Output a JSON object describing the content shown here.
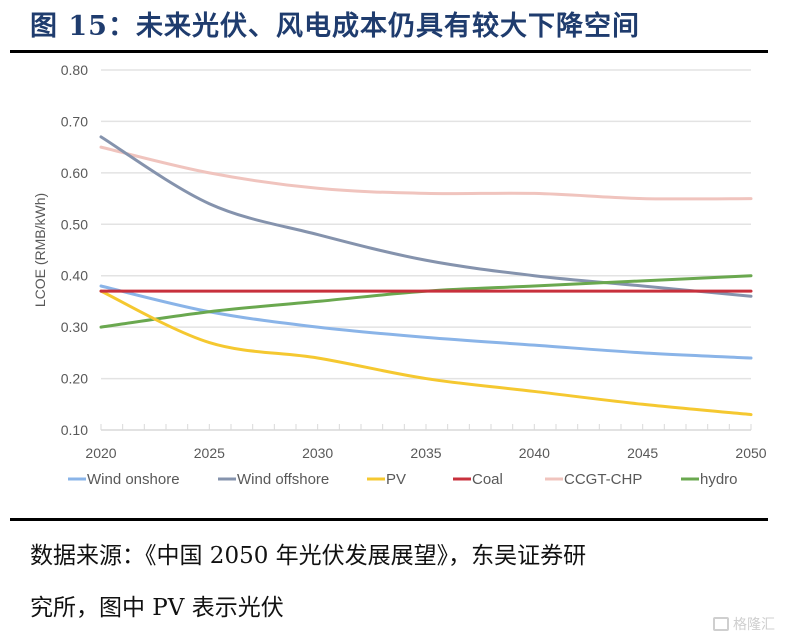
{
  "title": "图 15：未来光伏、风电成本仍具有较大下降空间",
  "source_line1": "数据来源：《中国 2050 年光伏发展展望》，东吴证券研",
  "source_line2": "究所，图中 PV 表示光伏",
  "watermark": "格隆汇",
  "chart_data": {
    "type": "line",
    "title": "",
    "xlabel": "",
    "ylabel": "LCOE (RMB/kWh)",
    "x": [
      2020,
      2025,
      2030,
      2035,
      2040,
      2045,
      2050
    ],
    "xlim": [
      2020,
      2050
    ],
    "ylim": [
      0.1,
      0.8
    ],
    "yticks": [
      "0.10",
      "0.20",
      "0.30",
      "0.40",
      "0.50",
      "0.60",
      "0.70",
      "0.80"
    ],
    "xticks": [
      "2020",
      "2025",
      "2030",
      "2035",
      "2040",
      "2045",
      "2050"
    ],
    "grid": true,
    "legend_position": "bottom",
    "series": [
      {
        "name": "Wind onshore",
        "color": "#8ab4e8",
        "values": [
          0.38,
          0.33,
          0.3,
          0.28,
          0.265,
          0.25,
          0.24
        ]
      },
      {
        "name": "Wind offshore",
        "color": "#8593ad",
        "values": [
          0.67,
          0.54,
          0.48,
          0.43,
          0.4,
          0.38,
          0.36
        ]
      },
      {
        "name": "PV",
        "color": "#f5c830",
        "values": [
          0.37,
          0.27,
          0.24,
          0.2,
          0.175,
          0.15,
          0.13
        ]
      },
      {
        "name": "Coal",
        "color": "#c8303c",
        "values": [
          0.37,
          0.37,
          0.37,
          0.37,
          0.37,
          0.37,
          0.37
        ]
      },
      {
        "name": "CCGT-CHP",
        "color": "#f0c4be",
        "values": [
          0.65,
          0.6,
          0.57,
          0.56,
          0.56,
          0.55,
          0.55
        ]
      },
      {
        "name": "hydro",
        "color": "#6aa84f",
        "values": [
          0.3,
          0.33,
          0.35,
          0.37,
          0.38,
          0.39,
          0.4
        ]
      }
    ]
  }
}
